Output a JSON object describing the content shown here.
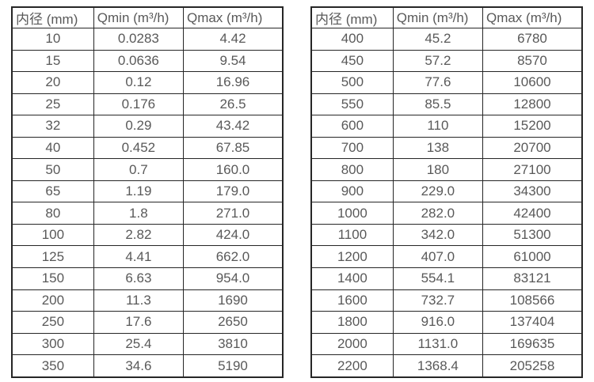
{
  "page": {
    "background": "#ffffff",
    "border_color": "#262626",
    "text_color": "#595959"
  },
  "chart_data": [
    {
      "type": "table",
      "title": "",
      "columns": [
        "内径 (mm)",
        "Qmin (m³/h)",
        "Qmax (m³/h)"
      ],
      "rows": [
        [
          "10",
          "0.0283",
          "4.42"
        ],
        [
          "15",
          "0.0636",
          "9.54"
        ],
        [
          "20",
          "0.12",
          "16.96"
        ],
        [
          "25",
          "0.176",
          "26.5"
        ],
        [
          "32",
          "0.29",
          "43.42"
        ],
        [
          "40",
          "0.452",
          "67.85"
        ],
        [
          "50",
          "0.7",
          "160.0"
        ],
        [
          "65",
          "1.19",
          "179.0"
        ],
        [
          "80",
          "1.8",
          "271.0"
        ],
        [
          "100",
          "2.82",
          "424.0"
        ],
        [
          "125",
          "4.41",
          "662.0"
        ],
        [
          "150",
          "6.63",
          "954.0"
        ],
        [
          "200",
          "11.3",
          "1690"
        ],
        [
          "250",
          "17.6",
          "2650"
        ],
        [
          "300",
          "25.4",
          "3810"
        ],
        [
          "350",
          "34.6",
          "5190"
        ]
      ]
    },
    {
      "type": "table",
      "title": "",
      "columns": [
        "内径 (mm)",
        "Qmin (m³/h)",
        "Qmax (m³/h)"
      ],
      "rows": [
        [
          "400",
          "45.2",
          "6780"
        ],
        [
          "450",
          "57.2",
          "8570"
        ],
        [
          "500",
          "77.6",
          "10600"
        ],
        [
          "550",
          "85.5",
          "12800"
        ],
        [
          "600",
          "110",
          "15200"
        ],
        [
          "700",
          "138",
          "20700"
        ],
        [
          "800",
          "180",
          "27100"
        ],
        [
          "900",
          "229.0",
          "34300"
        ],
        [
          "1000",
          "282.0",
          "42400"
        ],
        [
          "1100",
          "342.0",
          "51300"
        ],
        [
          "1200",
          "407.0",
          "61000"
        ],
        [
          "1400",
          "554.1",
          "83121"
        ],
        [
          "1600",
          "732.7",
          "108566"
        ],
        [
          "1800",
          "916.0",
          "137404"
        ],
        [
          "2000",
          "1131.0",
          "169635"
        ],
        [
          "2200",
          "1368.4",
          "205258"
        ]
      ]
    }
  ]
}
